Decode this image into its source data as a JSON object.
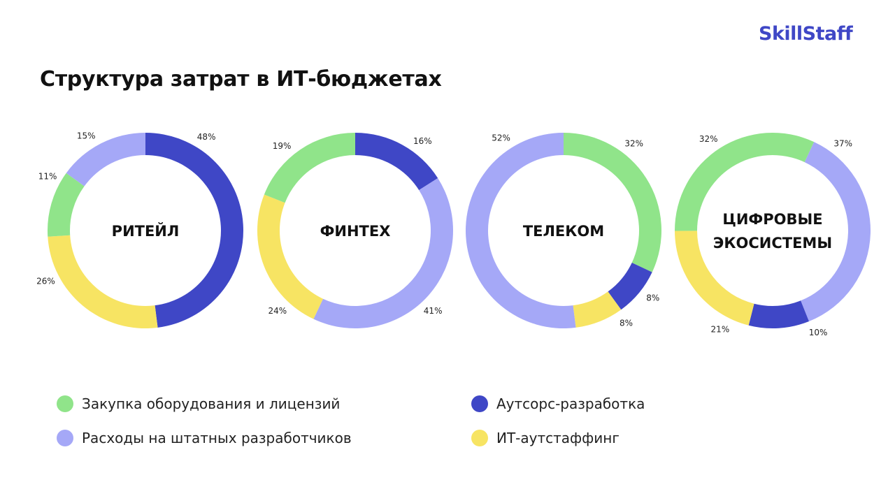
{
  "logo": "SkillStaff",
  "title": "Структура затрат в ИТ-бюджетах",
  "colors": {
    "hardware": "#90e48a",
    "staff": "#a5a8f7",
    "outsource": "#3f47c6",
    "outstaff": "#f7e463"
  },
  "legend": [
    {
      "key": "hardware",
      "label": "Закупка оборудования и лицензий"
    },
    {
      "key": "staff",
      "label": "Расходы на штатных разработчиков"
    },
    {
      "key": "outsource",
      "label": "Аутсорс-разработка"
    },
    {
      "key": "outstaff",
      "label": "ИТ-аутстаффинг"
    }
  ],
  "chart_data": [
    {
      "type": "pie",
      "title": "РИТЕЙЛ",
      "donut": true,
      "slices": [
        {
          "key": "outsource",
          "value": 48,
          "label": "48%"
        },
        {
          "key": "outstaff",
          "value": 26,
          "label": "26%"
        },
        {
          "key": "hardware",
          "value": 11,
          "label": "11%"
        },
        {
          "key": "staff",
          "value": 15,
          "label": "15%"
        }
      ]
    },
    {
      "type": "pie",
      "title": "ФИНТЕХ",
      "donut": true,
      "slices": [
        {
          "key": "outsource",
          "value": 16,
          "label": "16%"
        },
        {
          "key": "staff",
          "value": 41,
          "label": "41%"
        },
        {
          "key": "outstaff",
          "value": 24,
          "label": "24%"
        },
        {
          "key": "hardware",
          "value": 19,
          "label": "19%"
        }
      ]
    },
    {
      "type": "pie",
      "title": "ТЕЛЕКОМ",
      "donut": true,
      "slices": [
        {
          "key": "hardware",
          "value": 32,
          "label": "32%"
        },
        {
          "key": "outsource",
          "value": 8,
          "label": "8%"
        },
        {
          "key": "outstaff",
          "value": 8,
          "label": "8%"
        },
        {
          "key": "staff",
          "value": 52,
          "label": "52%"
        }
      ]
    },
    {
      "type": "pie",
      "title": "ЦИФРОВЫЕ ЭКОСИСТЕМЫ",
      "title_lines": [
        "ЦИФРОВЫЕ",
        "ЭКОСИСТЕМЫ"
      ],
      "donut": true,
      "slices": [
        {
          "key": "staff",
          "value": 37,
          "label": "37%"
        },
        {
          "key": "outsource",
          "value": 10,
          "label": "10%"
        },
        {
          "key": "outstaff",
          "value": 21,
          "label": "21%"
        },
        {
          "key": "hardware",
          "value": 32,
          "label": "32%"
        }
      ]
    }
  ]
}
